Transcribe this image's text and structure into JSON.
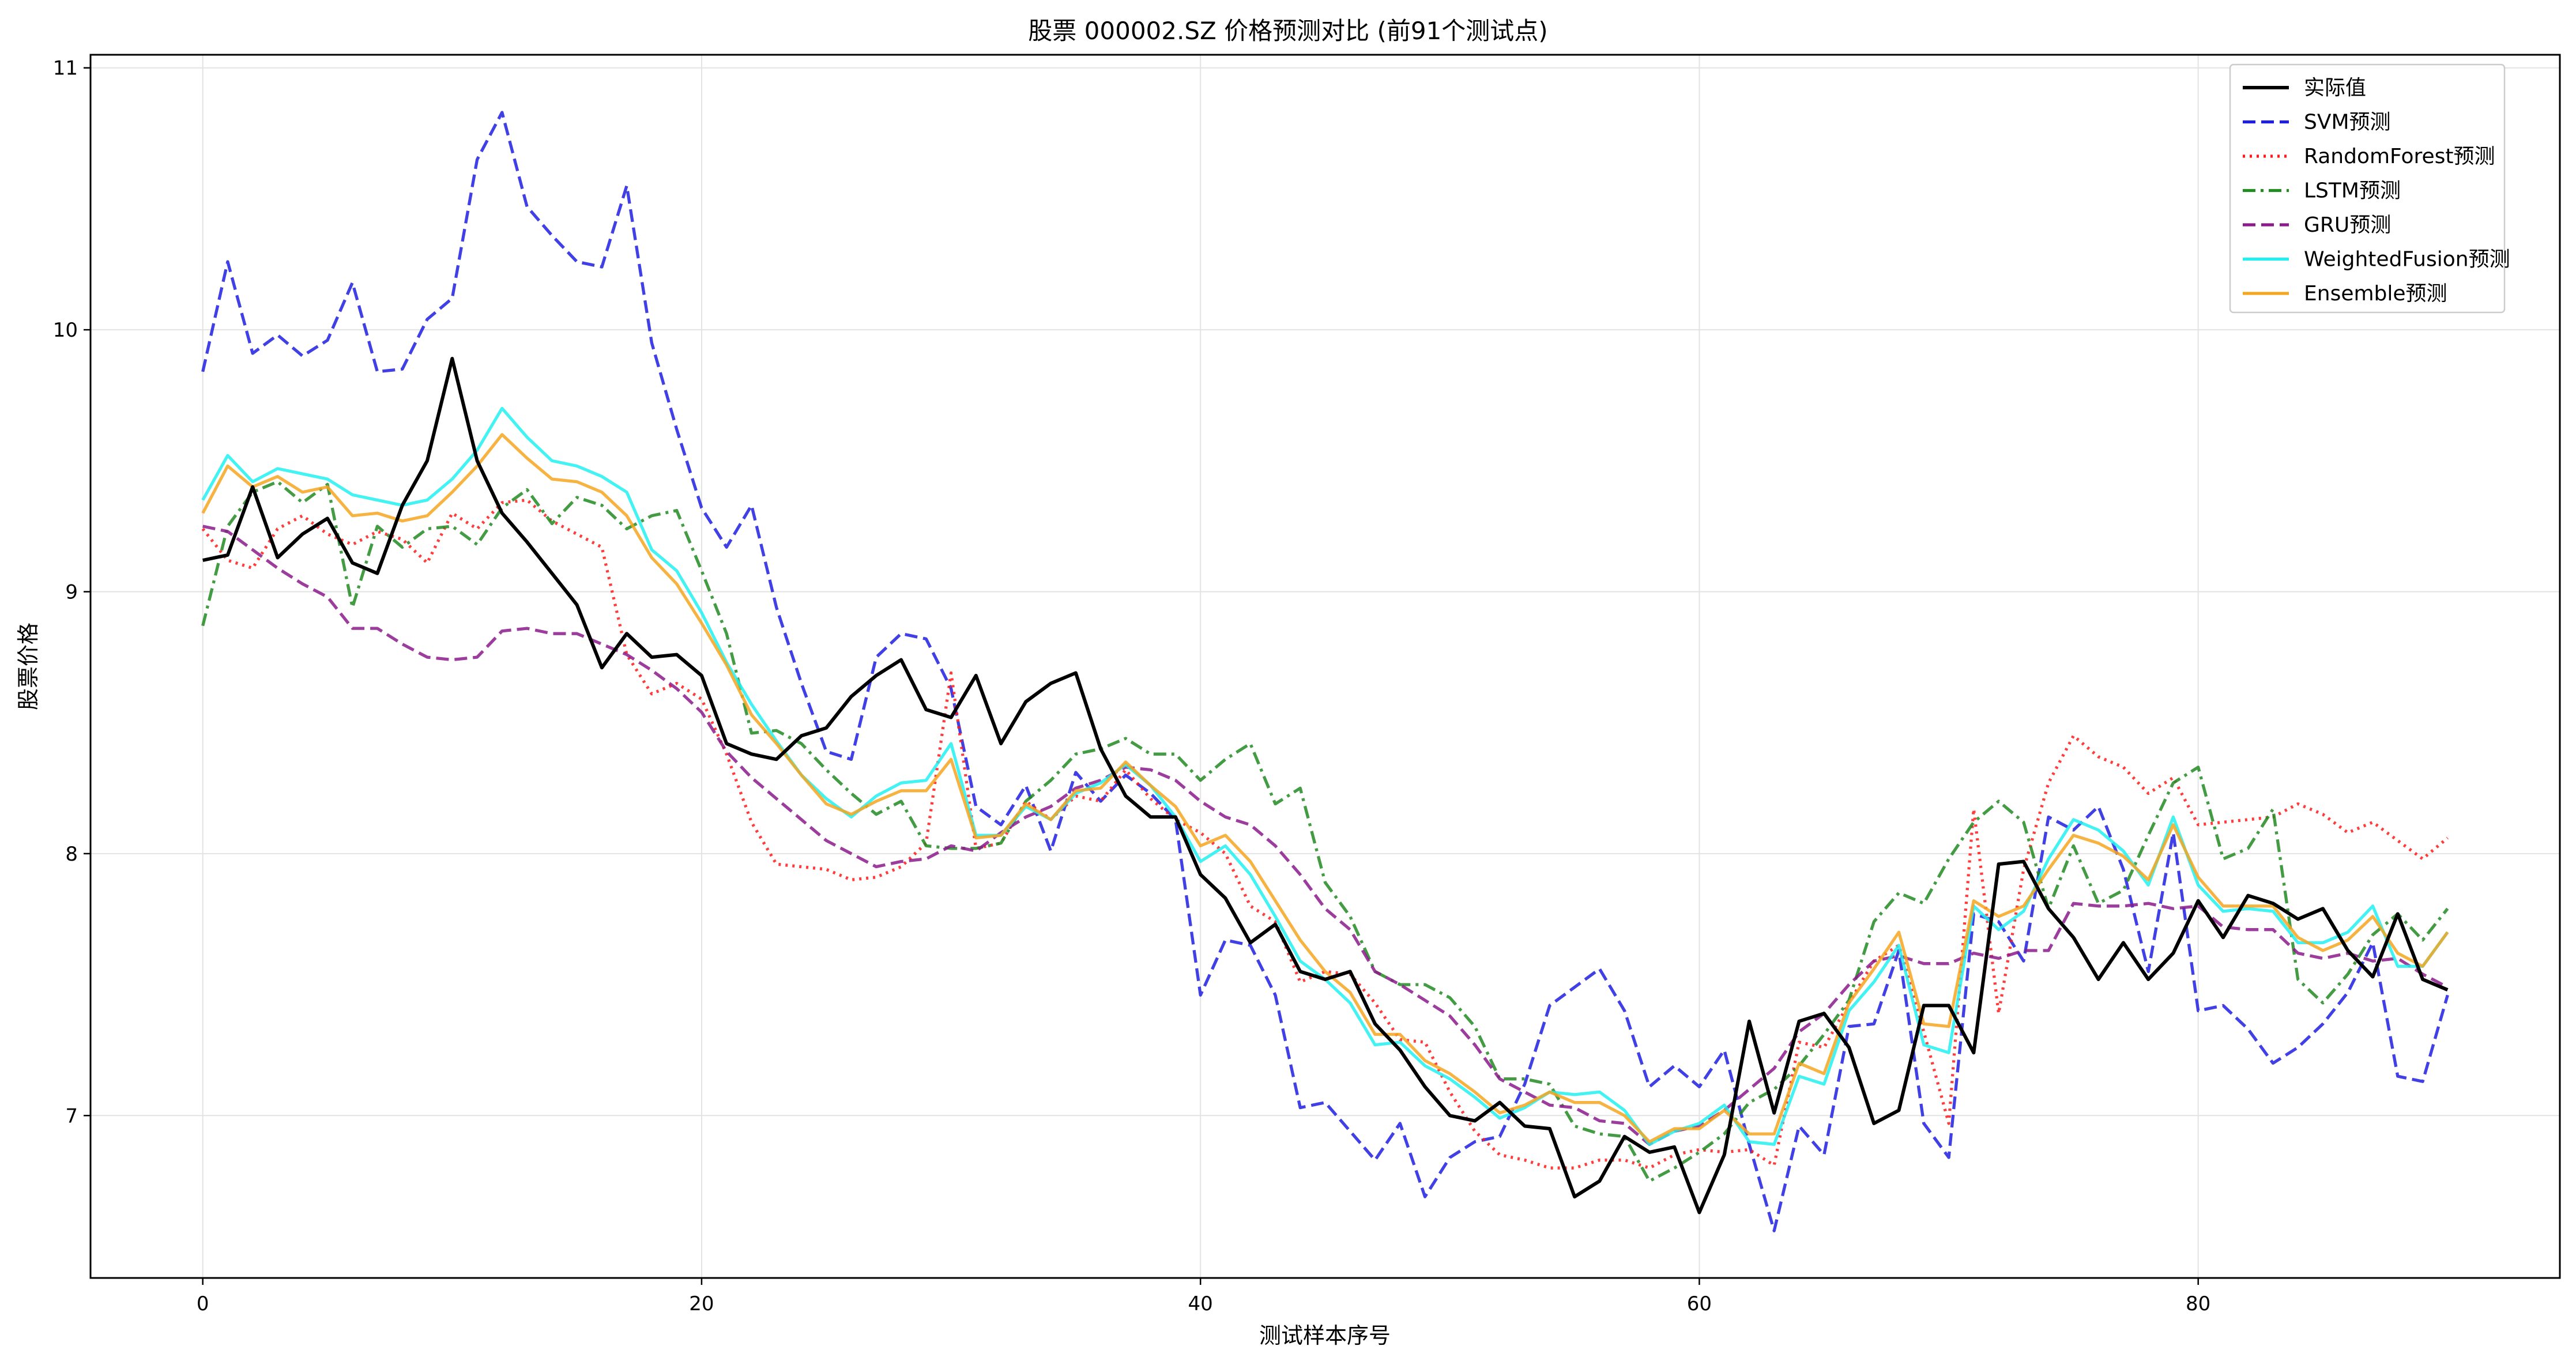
{
  "chart_data": {
    "type": "line",
    "title": "股票 000002.SZ 价格预测对比 (前91个测试点)",
    "xlabel": "测试样本序号",
    "ylabel": "股票价格",
    "xlim": [
      -4.5,
      94.5
    ],
    "ylim": [
      6.38,
      11.05
    ],
    "xticks": [
      0,
      20,
      40,
      60,
      80
    ],
    "yticks": [
      7,
      8,
      9,
      10,
      11
    ],
    "grid": true,
    "legend_position": "top-right",
    "x": [
      0,
      1,
      2,
      3,
      4,
      5,
      6,
      7,
      8,
      9,
      10,
      11,
      12,
      13,
      14,
      15,
      16,
      17,
      18,
      19,
      20,
      21,
      22,
      23,
      24,
      25,
      26,
      27,
      28,
      29,
      30,
      31,
      32,
      33,
      34,
      35,
      36,
      37,
      38,
      39,
      40,
      41,
      42,
      43,
      44,
      45,
      46,
      47,
      48,
      49,
      50,
      51,
      52,
      53,
      54,
      55,
      56,
      57,
      58,
      59,
      60,
      61,
      62,
      63,
      64,
      65,
      66,
      67,
      68,
      69,
      70,
      71,
      72,
      73,
      74,
      75,
      76,
      77,
      78,
      79,
      80,
      81,
      82,
      83,
      84,
      85,
      86,
      87,
      88,
      89,
      90
    ],
    "series": [
      {
        "name": "实际值",
        "color": "#000000",
        "dash": "solid",
        "width": 2.5,
        "values": [
          9.12,
          9.14,
          9.4,
          9.13,
          9.22,
          9.28,
          9.11,
          9.07,
          9.33,
          9.5,
          9.89,
          9.5,
          9.3,
          9.19,
          9.07,
          8.95,
          8.71,
          8.84,
          8.75,
          8.76,
          8.68,
          8.42,
          8.38,
          8.36,
          8.45,
          8.48,
          8.6,
          8.68,
          8.74,
          8.55,
          8.52,
          8.68,
          8.42,
          8.58,
          8.65,
          8.69,
          8.4,
          8.22,
          8.14,
          8.14,
          7.92,
          7.83,
          7.66,
          7.73,
          7.55,
          7.52,
          7.55,
          7.35,
          7.25,
          7.11,
          7.0,
          6.98,
          7.05,
          6.96,
          6.95,
          6.69,
          6.75,
          6.92,
          6.86,
          6.88,
          6.63,
          6.85,
          7.36,
          7.01,
          7.36,
          7.39,
          7.26,
          6.97,
          7.02,
          7.42,
          7.42,
          7.24,
          7.96,
          7.97,
          7.79,
          7.68,
          7.52,
          7.66,
          7.52,
          7.62,
          7.82,
          7.68,
          7.84,
          7.81,
          7.75,
          7.79,
          7.63,
          7.53,
          7.77,
          7.52,
          7.48
        ]
      },
      {
        "name": "SVM预测",
        "color": "#1f1fe0",
        "dash": "dashed",
        "width": 2.2,
        "values": [
          9.84,
          10.26,
          9.91,
          9.98,
          9.9,
          9.96,
          10.18,
          9.84,
          9.85,
          10.04,
          10.12,
          10.65,
          10.83,
          10.47,
          10.36,
          10.26,
          10.24,
          10.55,
          9.95,
          9.62,
          9.32,
          9.17,
          9.33,
          8.94,
          8.65,
          8.39,
          8.36,
          8.75,
          8.84,
          8.82,
          8.63,
          8.18,
          8.11,
          8.26,
          8.01,
          8.31,
          8.2,
          8.3,
          8.23,
          8.13,
          7.46,
          7.67,
          7.65,
          7.46,
          7.03,
          7.05,
          6.94,
          6.83,
          6.97,
          6.69,
          6.84,
          6.9,
          6.92,
          7.12,
          7.42,
          7.49,
          7.56,
          7.4,
          7.11,
          7.19,
          7.11,
          7.25,
          6.89,
          6.56,
          6.96,
          6.85,
          7.34,
          7.35,
          7.63,
          6.97,
          6.84,
          7.77,
          7.74,
          7.59,
          8.14,
          8.09,
          8.18,
          7.94,
          7.55,
          8.08,
          7.4,
          7.42,
          7.33,
          7.2,
          7.26,
          7.35,
          7.47,
          7.66,
          7.15,
          7.13,
          7.46
        ]
      },
      {
        "name": "RandomForest预测",
        "color": "#ff1a1a",
        "dash": "dotted",
        "width": 2.2,
        "values": [
          9.24,
          9.12,
          9.09,
          9.24,
          9.29,
          9.22,
          9.18,
          9.23,
          9.2,
          9.11,
          9.3,
          9.24,
          9.34,
          9.35,
          9.27,
          9.22,
          9.17,
          8.76,
          8.61,
          8.65,
          8.59,
          8.38,
          8.12,
          7.96,
          7.95,
          7.94,
          7.9,
          7.91,
          7.95,
          8.04,
          8.69,
          8.02,
          8.04,
          8.2,
          8.13,
          8.22,
          8.2,
          8.32,
          8.21,
          8.13,
          8.08,
          8.0,
          7.8,
          7.74,
          7.51,
          7.55,
          7.54,
          7.43,
          7.29,
          7.28,
          7.09,
          6.94,
          6.85,
          6.83,
          6.8,
          6.8,
          6.83,
          6.83,
          6.8,
          6.85,
          6.87,
          6.86,
          6.87,
          6.81,
          7.28,
          7.26,
          7.43,
          7.59,
          7.65,
          7.32,
          6.97,
          8.17,
          7.39,
          7.94,
          8.27,
          8.45,
          8.37,
          8.33,
          8.23,
          8.29,
          8.11,
          8.12,
          8.13,
          8.14,
          8.19,
          8.15,
          8.08,
          8.12,
          8.05,
          7.98,
          8.06
        ]
      },
      {
        "name": "LSTM预测",
        "color": "#228b22",
        "dash": "dashdot",
        "width": 2.2,
        "values": [
          8.87,
          9.25,
          9.38,
          9.42,
          9.34,
          9.41,
          8.94,
          9.25,
          9.17,
          9.24,
          9.25,
          9.18,
          9.32,
          9.39,
          9.26,
          9.36,
          9.33,
          9.24,
          9.29,
          9.31,
          9.08,
          8.84,
          8.46,
          8.47,
          8.42,
          8.32,
          8.23,
          8.15,
          8.2,
          8.03,
          8.02,
          8.02,
          8.04,
          8.2,
          8.28,
          8.38,
          8.4,
          8.44,
          8.38,
          8.38,
          8.28,
          8.36,
          8.42,
          8.19,
          8.25,
          7.89,
          7.76,
          7.55,
          7.5,
          7.5,
          7.45,
          7.34,
          7.14,
          7.14,
          7.12,
          6.96,
          6.93,
          6.92,
          6.75,
          6.8,
          6.86,
          6.93,
          7.05,
          7.1,
          7.19,
          7.31,
          7.44,
          7.74,
          7.85,
          7.81,
          7.98,
          8.12,
          8.2,
          8.12,
          7.79,
          8.03,
          7.81,
          7.86,
          8.07,
          8.27,
          8.33,
          7.98,
          8.02,
          8.17,
          7.52,
          7.43,
          7.54,
          7.69,
          7.77,
          7.67,
          7.79
        ]
      },
      {
        "name": "GRU预测",
        "color": "#8b1a8b",
        "dash": "dashed",
        "width": 2.2,
        "values": [
          9.25,
          9.23,
          9.16,
          9.09,
          9.03,
          8.98,
          8.86,
          8.86,
          8.8,
          8.75,
          8.74,
          8.75,
          8.85,
          8.86,
          8.84,
          8.84,
          8.8,
          8.76,
          8.7,
          8.63,
          8.54,
          8.39,
          8.29,
          8.21,
          8.13,
          8.05,
          8.0,
          7.95,
          7.97,
          7.98,
          8.03,
          8.01,
          8.08,
          8.14,
          8.18,
          8.25,
          8.28,
          8.33,
          8.32,
          8.28,
          8.2,
          8.14,
          8.11,
          8.03,
          7.92,
          7.79,
          7.71,
          7.55,
          7.5,
          7.44,
          7.38,
          7.27,
          7.14,
          7.09,
          7.04,
          7.03,
          6.98,
          6.97,
          6.89,
          6.94,
          6.96,
          7.02,
          7.1,
          7.18,
          7.32,
          7.39,
          7.5,
          7.59,
          7.61,
          7.58,
          7.58,
          7.62,
          7.6,
          7.63,
          7.63,
          7.81,
          7.8,
          7.8,
          7.81,
          7.79,
          7.8,
          7.72,
          7.71,
          7.71,
          7.62,
          7.6,
          7.62,
          7.59,
          7.6,
          7.54,
          7.49
        ]
      },
      {
        "name": "WeightedFusion预测",
        "color": "#22f0f0",
        "dash": "solid",
        "width": 2.2,
        "values": [
          9.35,
          9.52,
          9.42,
          9.47,
          9.45,
          9.43,
          9.37,
          9.35,
          9.33,
          9.35,
          9.43,
          9.54,
          9.7,
          9.59,
          9.5,
          9.48,
          9.44,
          9.38,
          9.16,
          9.08,
          8.92,
          8.73,
          8.57,
          8.43,
          8.3,
          8.21,
          8.14,
          8.22,
          8.27,
          8.28,
          8.42,
          8.07,
          8.07,
          8.18,
          8.13,
          8.23,
          8.27,
          8.34,
          8.26,
          8.14,
          7.97,
          8.03,
          7.92,
          7.76,
          7.59,
          7.52,
          7.43,
          7.27,
          7.28,
          7.19,
          7.14,
          7.07,
          6.99,
          7.03,
          7.09,
          7.08,
          7.09,
          7.02,
          6.89,
          6.94,
          6.97,
          7.04,
          6.9,
          6.89,
          7.15,
          7.12,
          7.4,
          7.51,
          7.65,
          7.27,
          7.24,
          7.8,
          7.71,
          7.78,
          7.98,
          8.13,
          8.09,
          8.01,
          7.88,
          8.14,
          7.88,
          7.78,
          7.79,
          7.78,
          7.66,
          7.66,
          7.7,
          7.8,
          7.57,
          7.57,
          7.7
        ]
      },
      {
        "name": "Ensemble预测",
        "color": "#f4a620",
        "dash": "solid",
        "width": 2.2,
        "values": [
          9.3,
          9.48,
          9.4,
          9.44,
          9.38,
          9.4,
          9.29,
          9.3,
          9.27,
          9.29,
          9.38,
          9.48,
          9.6,
          9.51,
          9.43,
          9.42,
          9.38,
          9.29,
          9.13,
          9.03,
          8.88,
          8.72,
          8.53,
          8.42,
          8.3,
          8.19,
          8.15,
          8.2,
          8.24,
          8.24,
          8.36,
          8.06,
          8.07,
          8.19,
          8.13,
          8.24,
          8.25,
          8.35,
          8.26,
          8.18,
          8.03,
          8.07,
          7.97,
          7.82,
          7.67,
          7.55,
          7.47,
          7.31,
          7.31,
          7.21,
          7.16,
          7.09,
          7.01,
          7.04,
          7.09,
          7.05,
          7.05,
          7.0,
          6.9,
          6.95,
          6.95,
          7.02,
          6.93,
          6.93,
          7.2,
          7.16,
          7.43,
          7.56,
          7.7,
          7.35,
          7.34,
          7.82,
          7.76,
          7.8,
          7.94,
          8.07,
          8.04,
          7.99,
          7.9,
          8.11,
          7.91,
          7.8,
          7.8,
          7.8,
          7.68,
          7.63,
          7.67,
          7.76,
          7.62,
          7.57,
          7.7
        ]
      }
    ]
  }
}
